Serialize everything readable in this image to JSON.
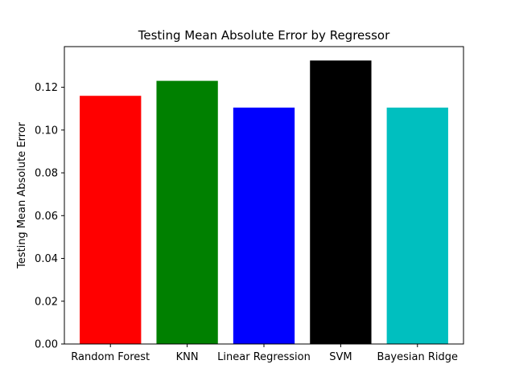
{
  "chart_data": {
    "type": "bar",
    "title": "Testing Mean Absolute Error by Regressor",
    "xlabel": "",
    "ylabel": "Testing Mean Absolute Error",
    "categories": [
      "Random Forest",
      "KNN",
      "Linear Regression",
      "SVM",
      "Bayesian Ridge"
    ],
    "values": [
      0.116,
      0.123,
      0.1105,
      0.1325,
      0.1105
    ],
    "colors": [
      "#ff0000",
      "#008000",
      "#0000ff",
      "#000000",
      "#00bfbf"
    ],
    "ylim": [
      0,
      0.139
    ],
    "yticks": [
      "0.00",
      "0.02",
      "0.04",
      "0.06",
      "0.08",
      "0.10",
      "0.12"
    ],
    "grid": false,
    "legend": "none"
  }
}
